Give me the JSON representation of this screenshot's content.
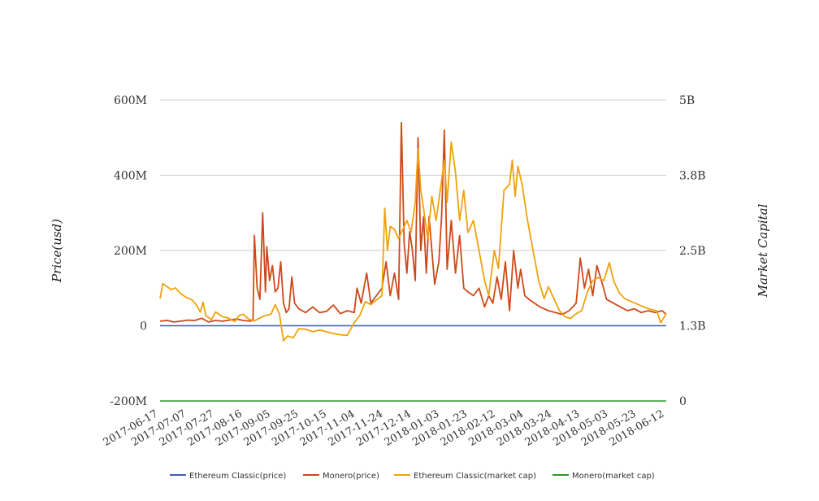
{
  "chart_data": {
    "type": "line",
    "ylabel_left": "Price(usd)",
    "ylabel_right": "Market Capital",
    "left_axis": {
      "min": -200000000,
      "max": 600000000,
      "ticks": [
        -200000000,
        0,
        200000000,
        400000000,
        600000000
      ],
      "tick_labels": [
        "-200M",
        "0",
        "200M",
        "400M",
        "600M"
      ]
    },
    "right_axis": {
      "min": 0,
      "max": 5000000000,
      "tick_labels": [
        "0",
        "1.3B",
        "2.5B",
        "3.8B",
        "5B"
      ]
    },
    "x_tick_labels": [
      "2017-06-17",
      "2017-07-07",
      "2017-07-27",
      "2017-08-16",
      "2017-09-05",
      "2017-09-25",
      "2017-10-15",
      "2017-11-04",
      "2017-11-24",
      "2017-12-14",
      "2018-01-03",
      "2018-01-23",
      "2018-02-12",
      "2018-03-04",
      "2018-03-24",
      "2018-04-13",
      "2018-05-03",
      "2018-05-23",
      "2018-06-12"
    ],
    "x_start": "2017-06-17",
    "x_end": "2018-06-17",
    "legend_position": "bottom",
    "grid": true,
    "series": [
      {
        "name": "Ethereum Classic(price)",
        "axis": "left",
        "color": "#3a5fb0",
        "points": [
          [
            "2017-06-17",
            0
          ],
          [
            "2018-06-17",
            0
          ]
        ]
      },
      {
        "name": "Monero(price)",
        "axis": "left",
        "color": "#cc4a1a",
        "points": [
          [
            "2017-06-17",
            12000000
          ],
          [
            "2017-06-22",
            14000000
          ],
          [
            "2017-06-27",
            10000000
          ],
          [
            "2017-07-02",
            12000000
          ],
          [
            "2017-07-07",
            15000000
          ],
          [
            "2017-07-12",
            14000000
          ],
          [
            "2017-07-17",
            20000000
          ],
          [
            "2017-07-22",
            10000000
          ],
          [
            "2017-07-27",
            14000000
          ],
          [
            "2017-08-01",
            12000000
          ],
          [
            "2017-08-06",
            15000000
          ],
          [
            "2017-08-11",
            18000000
          ],
          [
            "2017-08-16",
            14000000
          ],
          [
            "2017-08-21",
            12000000
          ],
          [
            "2017-08-23",
            15000000
          ],
          [
            "2017-08-24",
            240000000
          ],
          [
            "2017-08-26",
            100000000
          ],
          [
            "2017-08-28",
            70000000
          ],
          [
            "2017-08-30",
            300000000
          ],
          [
            "2017-09-01",
            90000000
          ],
          [
            "2017-09-02",
            210000000
          ],
          [
            "2017-09-04",
            120000000
          ],
          [
            "2017-09-06",
            160000000
          ],
          [
            "2017-09-08",
            90000000
          ],
          [
            "2017-09-10",
            100000000
          ],
          [
            "2017-09-12",
            170000000
          ],
          [
            "2017-09-14",
            60000000
          ],
          [
            "2017-09-16",
            35000000
          ],
          [
            "2017-09-18",
            45000000
          ],
          [
            "2017-09-20",
            130000000
          ],
          [
            "2017-09-22",
            60000000
          ],
          [
            "2017-09-25",
            45000000
          ],
          [
            "2017-09-30",
            35000000
          ],
          [
            "2017-10-05",
            50000000
          ],
          [
            "2017-10-10",
            35000000
          ],
          [
            "2017-10-15",
            38000000
          ],
          [
            "2017-10-20",
            55000000
          ],
          [
            "2017-10-25",
            32000000
          ],
          [
            "2017-10-30",
            40000000
          ],
          [
            "2017-11-04",
            35000000
          ],
          [
            "2017-11-06",
            100000000
          ],
          [
            "2017-11-09",
            60000000
          ],
          [
            "2017-11-13",
            140000000
          ],
          [
            "2017-11-16",
            60000000
          ],
          [
            "2017-11-20",
            80000000
          ],
          [
            "2017-11-24",
            100000000
          ],
          [
            "2017-11-27",
            170000000
          ],
          [
            "2017-11-30",
            80000000
          ],
          [
            "2017-12-03",
            140000000
          ],
          [
            "2017-12-06",
            70000000
          ],
          [
            "2017-12-08",
            540000000
          ],
          [
            "2017-12-10",
            220000000
          ],
          [
            "2017-12-12",
            140000000
          ],
          [
            "2017-12-14",
            250000000
          ],
          [
            "2017-12-16",
            200000000
          ],
          [
            "2017-12-18",
            120000000
          ],
          [
            "2017-12-20",
            500000000
          ],
          [
            "2017-12-22",
            200000000
          ],
          [
            "2017-12-24",
            290000000
          ],
          [
            "2017-12-26",
            140000000
          ],
          [
            "2017-12-28",
            290000000
          ],
          [
            "2017-12-30",
            200000000
          ],
          [
            "2018-01-01",
            110000000
          ],
          [
            "2018-01-04",
            170000000
          ],
          [
            "2018-01-06",
            290000000
          ],
          [
            "2018-01-08",
            520000000
          ],
          [
            "2018-01-10",
            150000000
          ],
          [
            "2018-01-13",
            280000000
          ],
          [
            "2018-01-16",
            140000000
          ],
          [
            "2018-01-19",
            240000000
          ],
          [
            "2018-01-22",
            100000000
          ],
          [
            "2018-01-25",
            90000000
          ],
          [
            "2018-01-29",
            80000000
          ],
          [
            "2018-02-02",
            100000000
          ],
          [
            "2018-02-06",
            50000000
          ],
          [
            "2018-02-09",
            80000000
          ],
          [
            "2018-02-12",
            60000000
          ],
          [
            "2018-02-15",
            130000000
          ],
          [
            "2018-02-18",
            70000000
          ],
          [
            "2018-02-21",
            170000000
          ],
          [
            "2018-02-24",
            40000000
          ],
          [
            "2018-02-27",
            200000000
          ],
          [
            "2018-03-02",
            100000000
          ],
          [
            "2018-03-04",
            150000000
          ],
          [
            "2018-03-07",
            80000000
          ],
          [
            "2018-03-10",
            70000000
          ],
          [
            "2018-03-14",
            60000000
          ],
          [
            "2018-03-18",
            50000000
          ],
          [
            "2018-03-24",
            40000000
          ],
          [
            "2018-03-29",
            35000000
          ],
          [
            "2018-04-03",
            30000000
          ],
          [
            "2018-04-08",
            40000000
          ],
          [
            "2018-04-13",
            60000000
          ],
          [
            "2018-04-16",
            180000000
          ],
          [
            "2018-04-19",
            100000000
          ],
          [
            "2018-04-22",
            150000000
          ],
          [
            "2018-04-25",
            80000000
          ],
          [
            "2018-04-28",
            160000000
          ],
          [
            "2018-05-02",
            110000000
          ],
          [
            "2018-05-05",
            70000000
          ],
          [
            "2018-05-10",
            60000000
          ],
          [
            "2018-05-15",
            50000000
          ],
          [
            "2018-05-20",
            40000000
          ],
          [
            "2018-05-25",
            45000000
          ],
          [
            "2018-05-30",
            35000000
          ],
          [
            "2018-06-04",
            40000000
          ],
          [
            "2018-06-09",
            35000000
          ],
          [
            "2018-06-14",
            40000000
          ],
          [
            "2018-06-17",
            30000000
          ]
        ]
      },
      {
        "name": "Ethereum Classic(market cap)",
        "axis": "right",
        "color": "#f0a20c",
        "points": [
          [
            "2017-06-17",
            1700000000
          ],
          [
            "2017-06-19",
            1950000000
          ],
          [
            "2017-06-22",
            1900000000
          ],
          [
            "2017-06-25",
            1850000000
          ],
          [
            "2017-06-28",
            1880000000
          ],
          [
            "2017-07-02",
            1780000000
          ],
          [
            "2017-07-06",
            1720000000
          ],
          [
            "2017-07-10",
            1680000000
          ],
          [
            "2017-07-13",
            1600000000
          ],
          [
            "2017-07-16",
            1480000000
          ],
          [
            "2017-07-18",
            1640000000
          ],
          [
            "2017-07-20",
            1420000000
          ],
          [
            "2017-07-24",
            1350000000
          ],
          [
            "2017-07-27",
            1480000000
          ],
          [
            "2017-08-01",
            1400000000
          ],
          [
            "2017-08-05",
            1380000000
          ],
          [
            "2017-08-10",
            1320000000
          ],
          [
            "2017-08-13",
            1420000000
          ],
          [
            "2017-08-16",
            1440000000
          ],
          [
            "2017-08-20",
            1360000000
          ],
          [
            "2017-08-24",
            1330000000
          ],
          [
            "2017-08-28",
            1380000000
          ],
          [
            "2017-09-01",
            1420000000
          ],
          [
            "2017-09-05",
            1440000000
          ],
          [
            "2017-09-08",
            1600000000
          ],
          [
            "2017-09-11",
            1450000000
          ],
          [
            "2017-09-14",
            1000000000
          ],
          [
            "2017-09-17",
            1080000000
          ],
          [
            "2017-09-21",
            1050000000
          ],
          [
            "2017-09-25",
            1200000000
          ],
          [
            "2017-09-30",
            1190000000
          ],
          [
            "2017-10-05",
            1150000000
          ],
          [
            "2017-10-10",
            1180000000
          ],
          [
            "2017-10-15",
            1150000000
          ],
          [
            "2017-10-20",
            1120000000
          ],
          [
            "2017-10-25",
            1100000000
          ],
          [
            "2017-10-30",
            1090000000
          ],
          [
            "2017-11-04",
            1300000000
          ],
          [
            "2017-11-08",
            1420000000
          ],
          [
            "2017-11-12",
            1650000000
          ],
          [
            "2017-11-16",
            1600000000
          ],
          [
            "2017-11-20",
            1680000000
          ],
          [
            "2017-11-24",
            1750000000
          ],
          [
            "2017-11-26",
            3200000000
          ],
          [
            "2017-11-28",
            2500000000
          ],
          [
            "2017-11-30",
            2900000000
          ],
          [
            "2017-12-03",
            2850000000
          ],
          [
            "2017-12-06",
            2700000000
          ],
          [
            "2017-12-09",
            2850000000
          ],
          [
            "2017-12-12",
            3000000000
          ],
          [
            "2017-12-15",
            2800000000
          ],
          [
            "2017-12-18",
            3300000000
          ],
          [
            "2017-12-20",
            4200000000
          ],
          [
            "2017-12-22",
            3500000000
          ],
          [
            "2017-12-24",
            3200000000
          ],
          [
            "2017-12-27",
            2700000000
          ],
          [
            "2017-12-30",
            3400000000
          ],
          [
            "2018-01-02",
            3000000000
          ],
          [
            "2018-01-05",
            3500000000
          ],
          [
            "2018-01-08",
            4000000000
          ],
          [
            "2018-01-10",
            3300000000
          ],
          [
            "2018-01-13",
            4300000000
          ],
          [
            "2018-01-16",
            3800000000
          ],
          [
            "2018-01-19",
            3000000000
          ],
          [
            "2018-01-22",
            3500000000
          ],
          [
            "2018-01-25",
            2800000000
          ],
          [
            "2018-01-29",
            3000000000
          ],
          [
            "2018-02-02",
            2500000000
          ],
          [
            "2018-02-06",
            2000000000
          ],
          [
            "2018-02-09",
            1750000000
          ],
          [
            "2018-02-13",
            2500000000
          ],
          [
            "2018-02-16",
            2200000000
          ],
          [
            "2018-02-20",
            3500000000
          ],
          [
            "2018-02-24",
            3600000000
          ],
          [
            "2018-02-26",
            4000000000
          ],
          [
            "2018-02-28",
            3400000000
          ],
          [
            "2018-03-02",
            3900000000
          ],
          [
            "2018-03-05",
            3600000000
          ],
          [
            "2018-03-09",
            3000000000
          ],
          [
            "2018-03-13",
            2500000000
          ],
          [
            "2018-03-17",
            2000000000
          ],
          [
            "2018-03-21",
            1700000000
          ],
          [
            "2018-03-24",
            1900000000
          ],
          [
            "2018-03-28",
            1700000000
          ],
          [
            "2018-04-01",
            1500000000
          ],
          [
            "2018-04-05",
            1400000000
          ],
          [
            "2018-04-09",
            1370000000
          ],
          [
            "2018-04-13",
            1450000000
          ],
          [
            "2018-04-17",
            1500000000
          ],
          [
            "2018-04-21",
            1800000000
          ],
          [
            "2018-04-25",
            2000000000
          ],
          [
            "2018-04-29",
            2050000000
          ],
          [
            "2018-05-03",
            2000000000
          ],
          [
            "2018-05-07",
            2300000000
          ],
          [
            "2018-05-10",
            2000000000
          ],
          [
            "2018-05-14",
            1800000000
          ],
          [
            "2018-05-18",
            1700000000
          ],
          [
            "2018-05-23",
            1650000000
          ],
          [
            "2018-05-28",
            1600000000
          ],
          [
            "2018-06-02",
            1550000000
          ],
          [
            "2018-06-06",
            1520000000
          ],
          [
            "2018-06-10",
            1500000000
          ],
          [
            "2018-06-13",
            1300000000
          ],
          [
            "2018-06-17",
            1450000000
          ]
        ]
      },
      {
        "name": "Monero(market cap)",
        "axis": "right",
        "color": "#2a9a2a",
        "points": [
          [
            "2017-06-17",
            0
          ],
          [
            "2018-06-17",
            0
          ]
        ]
      }
    ]
  }
}
